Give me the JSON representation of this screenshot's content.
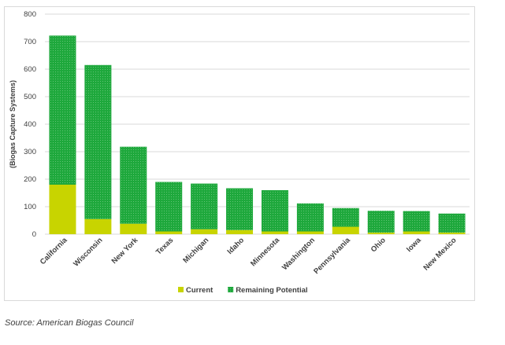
{
  "chart_data": {
    "type": "bar",
    "stacked": true,
    "categories": [
      "California",
      "Wisconsin",
      "New York",
      "Texas",
      "Michigan",
      "Idaho",
      "Minnesota",
      "Washington",
      "Pennsylvania",
      "Ohio",
      "Iowa",
      "New Mexico"
    ],
    "series": [
      {
        "name": "Current",
        "color": "#c8d400",
        "values": [
          180,
          55,
          38,
          10,
          18,
          15,
          10,
          10,
          27,
          6,
          10,
          6
        ]
      },
      {
        "name": "Remaining Potential",
        "color": "#1ea83c",
        "values": [
          542,
          560,
          280,
          180,
          166,
          152,
          150,
          102,
          68,
          79,
          74,
          69
        ]
      }
    ],
    "ylabel": "(Biogas Capture Systems)",
    "xlabel": "",
    "ylim": [
      0,
      800
    ],
    "yticks": [
      0,
      100,
      200,
      300,
      400,
      500,
      600,
      700,
      800
    ],
    "grid": true,
    "legend_position": "bottom"
  },
  "source_note": "Source: American Biogas Council"
}
